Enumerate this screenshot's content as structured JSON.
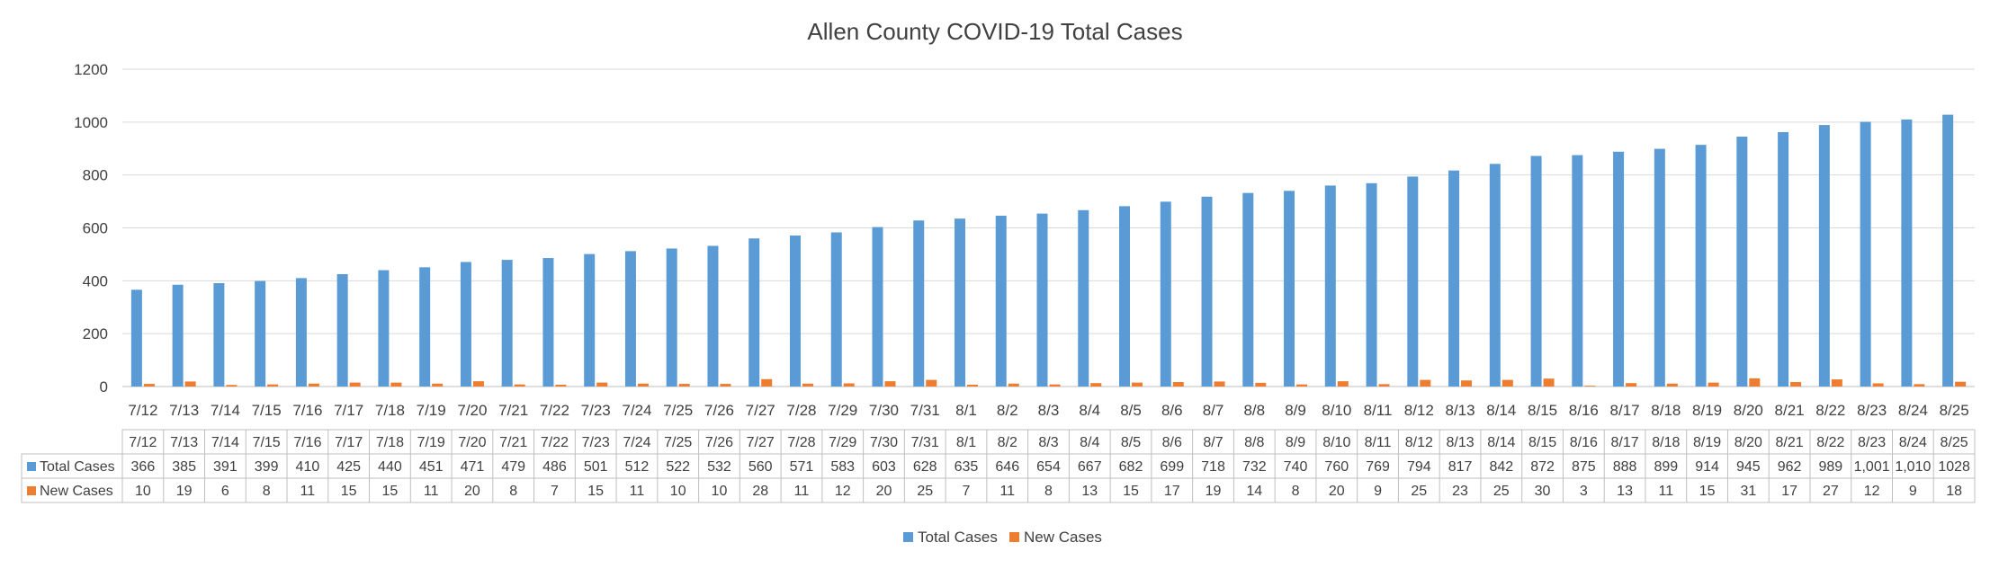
{
  "chart_data": {
    "type": "bar",
    "title": "Allen County COVID-19 Total Cases",
    "xlabel": "",
    "ylabel": "",
    "ylim": [
      0,
      1200
    ],
    "yticks": [
      "0",
      "200",
      "400",
      "600",
      "800",
      "1000",
      "1200"
    ],
    "grid": true,
    "legend_position": "bottom",
    "categories": [
      "7/12",
      "7/13",
      "7/14",
      "7/15",
      "7/16",
      "7/17",
      "7/18",
      "7/19",
      "7/20",
      "7/21",
      "7/22",
      "7/23",
      "7/24",
      "7/25",
      "7/26",
      "7/27",
      "7/28",
      "7/29",
      "7/30",
      "7/31",
      "8/1",
      "8/2",
      "8/3",
      "8/4",
      "8/5",
      "8/6",
      "8/7",
      "8/8",
      "8/9",
      "8/10",
      "8/11",
      "8/12",
      "8/13",
      "8/14",
      "8/15",
      "8/16",
      "8/17",
      "8/18",
      "8/19",
      "8/20",
      "8/21",
      "8/22",
      "8/23",
      "8/24",
      "8/25"
    ],
    "series": [
      {
        "name": "Total Cases",
        "color": "#5B9BD5",
        "values": [
          366,
          385,
          391,
          399,
          410,
          425,
          440,
          451,
          471,
          479,
          486,
          501,
          512,
          522,
          532,
          560,
          571,
          583,
          603,
          628,
          635,
          646,
          654,
          667,
          682,
          699,
          718,
          732,
          740,
          760,
          769,
          794,
          817,
          842,
          872,
          875,
          888,
          899,
          914,
          945,
          962,
          989,
          1001,
          1010,
          1028
        ],
        "labels": [
          "366",
          "385",
          "391",
          "399",
          "410",
          "425",
          "440",
          "451",
          "471",
          "479",
          "486",
          "501",
          "512",
          "522",
          "532",
          "560",
          "571",
          "583",
          "603",
          "628",
          "635",
          "646",
          "654",
          "667",
          "682",
          "699",
          "718",
          "732",
          "740",
          "760",
          "769",
          "794",
          "817",
          "842",
          "872",
          "875",
          "888",
          "899",
          "914",
          "945",
          "962",
          "989",
          "1,001",
          "1,010",
          "1028"
        ]
      },
      {
        "name": "New Cases",
        "color": "#ED7D31",
        "values": [
          10,
          19,
          6,
          8,
          11,
          15,
          15,
          11,
          20,
          8,
          7,
          15,
          11,
          10,
          10,
          28,
          11,
          12,
          20,
          25,
          7,
          11,
          8,
          13,
          15,
          17,
          19,
          14,
          8,
          20,
          9,
          25,
          23,
          25,
          30,
          3,
          13,
          11,
          15,
          31,
          17,
          27,
          12,
          9,
          18
        ],
        "labels": [
          "10",
          "19",
          "6",
          "8",
          "11",
          "15",
          "15",
          "11",
          "20",
          "8",
          "7",
          "15",
          "11",
          "10",
          "10",
          "28",
          "11",
          "12",
          "20",
          "25",
          "7",
          "11",
          "8",
          "13",
          "15",
          "17",
          "19",
          "14",
          "8",
          "20",
          "9",
          "25",
          "23",
          "25",
          "30",
          "3",
          "13",
          "11",
          "15",
          "31",
          "17",
          "27",
          "12",
          "9",
          "18"
        ]
      }
    ]
  }
}
